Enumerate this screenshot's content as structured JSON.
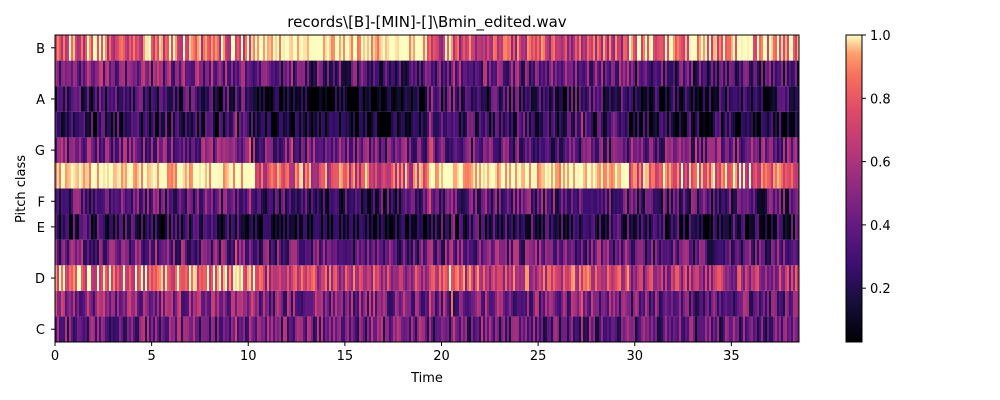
{
  "chart_data": {
    "type": "heatmap",
    "title": "records\\[B]-[MIN]-[]\\Bmin_edited.wav",
    "xlabel": "Time",
    "ylabel": "Pitch class",
    "xlim": [
      0,
      38.5
    ],
    "x_ticks": [
      0,
      5,
      10,
      15,
      20,
      25,
      30,
      35
    ],
    "y_rows": [
      "C",
      "C#",
      "D",
      "D#",
      "E",
      "F",
      "F#",
      "G",
      "G#",
      "A",
      "A#",
      "B"
    ],
    "y_tick_labels": [
      "C",
      "D",
      "E",
      "F",
      "G",
      "A",
      "B"
    ],
    "colormap": "magma",
    "colorbar": {
      "min": 0.03,
      "max": 1.0,
      "ticks": [
        "0.2",
        "0.4",
        "0.6",
        "0.8",
        "1.0"
      ]
    },
    "segments": [
      {
        "start": 0.0,
        "end": 10.3,
        "levels": [
          0.4,
          0.5,
          0.85,
          0.4,
          0.2,
          0.35,
          0.97,
          0.4,
          0.2,
          0.25,
          0.45,
          0.8
        ]
      },
      {
        "start": 10.3,
        "end": 19.2,
        "levels": [
          0.4,
          0.45,
          0.65,
          0.35,
          0.1,
          0.25,
          0.75,
          0.4,
          0.1,
          0.05,
          0.3,
          1.0
        ]
      },
      {
        "start": 19.2,
        "end": 29.7,
        "levels": [
          0.35,
          0.45,
          0.7,
          0.4,
          0.2,
          0.35,
          1.0,
          0.35,
          0.25,
          0.25,
          0.4,
          0.7
        ]
      },
      {
        "start": 29.7,
        "end": 38.5,
        "levels": [
          0.35,
          0.4,
          0.6,
          0.35,
          0.2,
          0.3,
          0.8,
          0.4,
          0.15,
          0.15,
          0.3,
          0.9
        ]
      }
    ]
  }
}
